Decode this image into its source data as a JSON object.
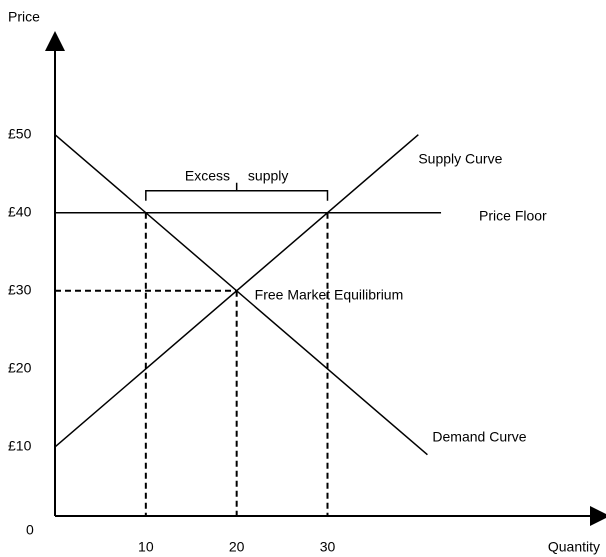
{
  "chart_data": {
    "type": "line",
    "xlabel": "Quantity",
    "ylabel": "Price",
    "xlim": [
      0,
      60
    ],
    "ylim": [
      0,
      62
    ],
    "xticks": [
      10,
      20,
      30
    ],
    "yticks": [
      0,
      {
        "value": 10,
        "label": "£10"
      },
      {
        "value": 20,
        "label": "£20"
      },
      {
        "value": 30,
        "label": "£30"
      },
      {
        "value": 40,
        "label": "£40"
      },
      {
        "value": 50,
        "label": "£50"
      }
    ],
    "series": [
      {
        "name": "Supply Curve",
        "color": "#000000",
        "x": [
          0,
          40
        ],
        "values": [
          10,
          50
        ]
      },
      {
        "name": "Demand Curve",
        "color": "#000000",
        "x": [
          0,
          41
        ],
        "values": [
          50,
          9
        ]
      },
      {
        "name": "Price Floor",
        "color": "#000000",
        "x": [
          0,
          42.5
        ],
        "values": [
          40,
          40
        ]
      }
    ],
    "equilibrium": {
      "label": "Free Market Equilibrium",
      "x": 20,
      "y": 30
    },
    "excess_supply": {
      "label": "Excess supply",
      "x": [
        10,
        30
      ],
      "y": 40
    }
  }
}
